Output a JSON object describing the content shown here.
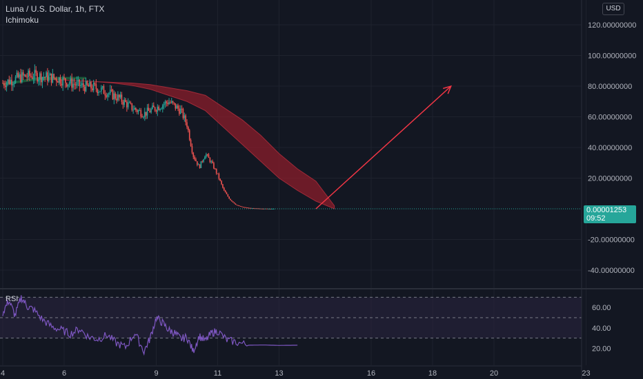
{
  "header": {
    "symbol_title": "Luna / U.S. Dollar, 1h, FTX",
    "indicator": "Ichimoku",
    "currency_button": "USD"
  },
  "price_tag": {
    "price": "0.00001253",
    "countdown": "09:52"
  },
  "rsi": {
    "label": "RSI",
    "ticks": [
      "60.00",
      "40.00",
      "20.00"
    ]
  },
  "colors": {
    "background": "#131722",
    "candle_up": "#26a69a",
    "candle_down": "#ef5350",
    "cloud_bearish": "#8b1e2b",
    "cloud_bullish": "#1b5e3b",
    "arrow": "#f23645",
    "rsi_line": "#7e57c2",
    "rsi_band": "#2a2440"
  },
  "chart_data": [
    {
      "type": "candlestick",
      "title": "Luna / U.S. Dollar, 1h, FTX",
      "y_ticks": [
        "120.00000000",
        "100.00000000",
        "80.00000000",
        "60.00000000",
        "40.00000000",
        "20.00000000",
        "-20.00000000",
        "-40.00000000"
      ],
      "x_ticks": [
        "4",
        "6",
        "9",
        "11",
        "13",
        "16",
        "18",
        "20",
        "23"
      ],
      "ylim": [
        -50,
        128
      ],
      "close_path": {
        "day": [
          4.0,
          4.3,
          4.6,
          5.0,
          5.4,
          5.8,
          6.2,
          6.6,
          7.0,
          7.4,
          7.8,
          8.2,
          8.6,
          9.0,
          9.4,
          9.8,
          10.0,
          10.2,
          10.4,
          10.6,
          10.8,
          11.0,
          11.2,
          11.4,
          11.6,
          11.8,
          12.0,
          12.2,
          12.5,
          12.8
        ],
        "price": [
          82,
          84,
          86,
          87,
          86,
          85,
          82,
          80,
          79,
          76,
          72,
          66,
          62,
          66,
          70,
          64,
          55,
          35,
          27,
          36,
          30,
          22,
          12,
          6,
          2.5,
          1.2,
          0.6,
          0.3,
          0.1,
          0.02
        ]
      },
      "ichimoku_cloud": {
        "day": [
          5.0,
          6.0,
          7.0,
          7.6,
          8.2,
          8.8,
          9.4,
          10.0,
          10.6,
          11.2,
          11.8,
          12.4,
          13.0,
          13.6,
          14.2,
          14.8
        ],
        "span_a": [
          85,
          84,
          83,
          82.5,
          82,
          81,
          79,
          77,
          74,
          66,
          58,
          48,
          36,
          26,
          18,
          2
        ],
        "span_b": [
          85,
          84,
          83,
          82,
          80.5,
          78,
          74,
          70,
          64,
          53,
          42,
          31,
          20,
          12,
          5,
          0
        ]
      },
      "arrow": {
        "from": {
          "day": 14.2,
          "price": 0
        },
        "to": {
          "day": 18.6,
          "price": 80
        }
      }
    },
    {
      "type": "line",
      "title": "RSI",
      "ylim": [
        10,
        75
      ],
      "y_ticks": [
        "60.00",
        "40.00",
        "20.00"
      ],
      "band": [
        30,
        70
      ],
      "series": [
        {
          "day": [
            4.0,
            4.2,
            4.4,
            4.6,
            4.8,
            5.0,
            5.3,
            5.6,
            5.9,
            6.2,
            6.5,
            6.8,
            7.1,
            7.4,
            7.7,
            8.0,
            8.3,
            8.6,
            8.8,
            9.0,
            9.2,
            9.4,
            9.6,
            9.8,
            10.0,
            10.2,
            10.4,
            10.6,
            10.8,
            11.0,
            11.3,
            11.6,
            12.0,
            12.5,
            13.0,
            13.6
          ],
          "values": [
            55,
            67,
            52,
            70,
            61,
            58,
            48,
            41,
            38,
            34,
            39,
            31,
            29,
            33,
            25,
            21,
            35,
            17,
            30,
            50,
            45,
            38,
            35,
            29,
            31,
            17,
            32,
            27,
            35,
            37,
            28,
            26,
            23,
            23.2,
            22.8,
            23
          ]
        }
      ]
    }
  ]
}
